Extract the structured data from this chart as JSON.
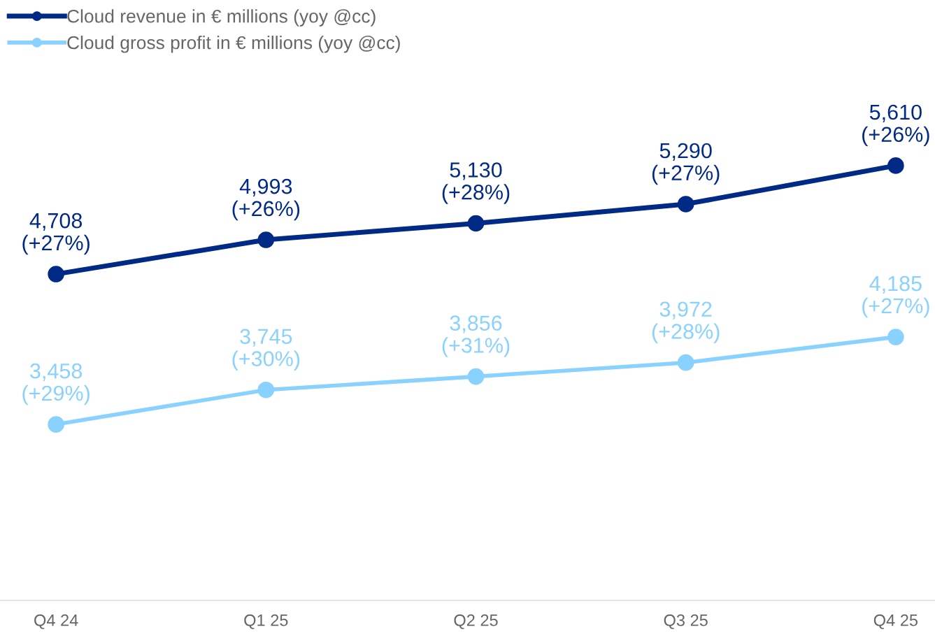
{
  "chart_data": {
    "type": "line",
    "categories": [
      "Q4 24",
      "Q1 25",
      "Q2 25",
      "Q3 25",
      "Q4 25"
    ],
    "series": [
      {
        "name": "Cloud revenue in € millions (yoy @cc)",
        "color": "#002a86",
        "values": [
          4708,
          4993,
          5130,
          5290,
          5610
        ],
        "value_labels": [
          "4,708\n(+27%)",
          "4,993\n(+26%)",
          "5,130\n(+28%)",
          "5,290\n(+27%)",
          "5,610\n(+26%)"
        ]
      },
      {
        "name": "Cloud gross profit in € millions (yoy @cc)",
        "color": "#89d1ff",
        "values": [
          3458,
          3745,
          3856,
          3972,
          4185
        ],
        "value_labels": [
          "3,458\n(+29%)",
          "3,745\n(+30%)",
          "3,856\n(+31%)",
          "3,972\n(+28%)",
          "4,185\n(+27%)"
        ]
      }
    ],
    "marker": "circle",
    "line_style": "solid",
    "legend": "top left",
    "grid": false
  }
}
